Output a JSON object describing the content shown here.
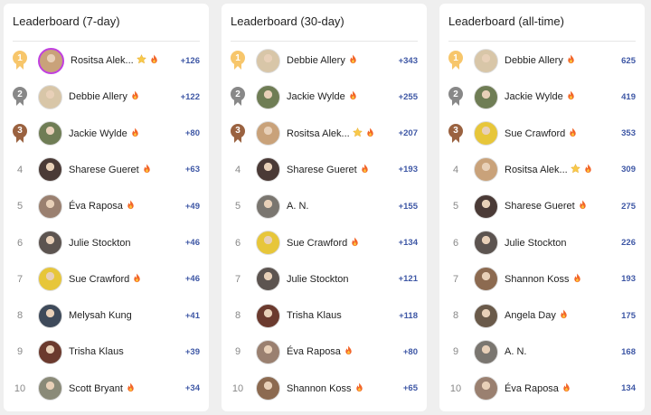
{
  "colors": {
    "gold": "#f7c66b",
    "silver": "#888888",
    "bronze": "#9a6240",
    "score": "#3e57a5"
  },
  "boards": [
    {
      "title": "Leaderboard (7-day)",
      "rows": [
        {
          "rank": "1",
          "name": "Rositsa Alek...",
          "star": true,
          "fire": true,
          "score": "+126",
          "avatar": "#c9a27a"
        },
        {
          "rank": "2",
          "name": "Debbie Allery",
          "fire": true,
          "score": "+122",
          "avatar": "#d8c6a8"
        },
        {
          "rank": "3",
          "name": "Jackie Wylde",
          "fire": true,
          "score": "+80",
          "avatar": "#6f7d55"
        },
        {
          "rank": "4",
          "name": "Sharese Gueret",
          "fire": true,
          "score": "+63",
          "avatar": "#4a3a36"
        },
        {
          "rank": "5",
          "name": "Éva Raposa",
          "fire": true,
          "score": "+49",
          "avatar": "#9a8070"
        },
        {
          "rank": "6",
          "name": "Julie Stockton",
          "score": "+46",
          "avatar": "#5c5450"
        },
        {
          "rank": "7",
          "name": "Sue Crawford",
          "fire": true,
          "score": "+46",
          "avatar": "#e7c63a"
        },
        {
          "rank": "8",
          "name": "Melysah Kung",
          "score": "+41",
          "avatar": "#3e4a5a"
        },
        {
          "rank": "9",
          "name": "Trisha Klaus",
          "score": "+39",
          "avatar": "#6b3a2e"
        },
        {
          "rank": "10",
          "name": "Scott Bryant",
          "fire": true,
          "score": "+34",
          "avatar": "#8a8a78"
        }
      ]
    },
    {
      "title": "Leaderboard (30-day)",
      "rows": [
        {
          "rank": "1",
          "name": "Debbie Allery",
          "fire": true,
          "score": "+343",
          "avatar": "#d8c6a8"
        },
        {
          "rank": "2",
          "name": "Jackie Wylde",
          "fire": true,
          "score": "+255",
          "avatar": "#6f7d55"
        },
        {
          "rank": "3",
          "name": "Rositsa Alek...",
          "star": true,
          "fire": true,
          "score": "+207",
          "avatar": "#c9a27a"
        },
        {
          "rank": "4",
          "name": "Sharese Gueret",
          "fire": true,
          "score": "+193",
          "avatar": "#4a3a36"
        },
        {
          "rank": "5",
          "name": "A. N.",
          "score": "+155",
          "avatar": "#7a7670"
        },
        {
          "rank": "6",
          "name": "Sue Crawford",
          "fire": true,
          "score": "+134",
          "avatar": "#e7c63a"
        },
        {
          "rank": "7",
          "name": "Julie Stockton",
          "score": "+121",
          "avatar": "#5c5450"
        },
        {
          "rank": "8",
          "name": "Trisha Klaus",
          "score": "+118",
          "avatar": "#6b3a2e"
        },
        {
          "rank": "9",
          "name": "Éva Raposa",
          "fire": true,
          "score": "+80",
          "avatar": "#9a8070"
        },
        {
          "rank": "10",
          "name": "Shannon Koss",
          "fire": true,
          "score": "+65",
          "avatar": "#8c6a50"
        }
      ]
    },
    {
      "title": "Leaderboard (all-time)",
      "rows": [
        {
          "rank": "1",
          "name": "Debbie Allery",
          "fire": true,
          "score": "625",
          "avatar": "#d8c6a8"
        },
        {
          "rank": "2",
          "name": "Jackie Wylde",
          "fire": true,
          "score": "419",
          "avatar": "#6f7d55"
        },
        {
          "rank": "3",
          "name": "Sue Crawford",
          "fire": true,
          "score": "353",
          "avatar": "#e7c63a"
        },
        {
          "rank": "4",
          "name": "Rositsa Alek...",
          "star": true,
          "fire": true,
          "score": "309",
          "avatar": "#c9a27a"
        },
        {
          "rank": "5",
          "name": "Sharese Gueret",
          "fire": true,
          "score": "275",
          "avatar": "#4a3a36"
        },
        {
          "rank": "6",
          "name": "Julie Stockton",
          "score": "226",
          "avatar": "#5c5450"
        },
        {
          "rank": "7",
          "name": "Shannon Koss",
          "fire": true,
          "score": "193",
          "avatar": "#8c6a50"
        },
        {
          "rank": "8",
          "name": "Angela Day",
          "fire": true,
          "score": "175",
          "avatar": "#6a5a4a"
        },
        {
          "rank": "9",
          "name": "A. N.",
          "score": "168",
          "avatar": "#7a7670"
        },
        {
          "rank": "10",
          "name": "Éva Raposa",
          "fire": true,
          "score": "134",
          "avatar": "#9a8070"
        }
      ]
    }
  ]
}
